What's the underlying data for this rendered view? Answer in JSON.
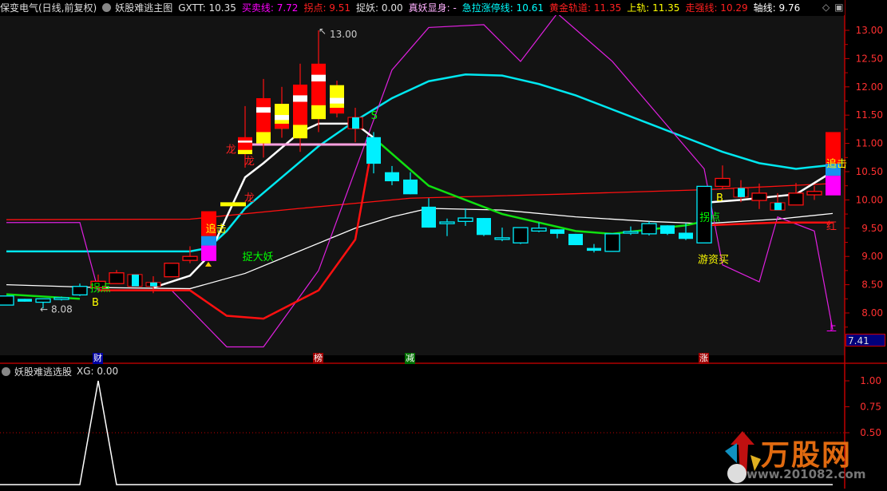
{
  "header": {
    "stock": "保变电气(日线,前复权)",
    "indicator": "妖股难逃主图",
    "items": [
      {
        "label": "GXTT: 10.35",
        "color": "#e0e0e0"
      },
      {
        "label": "买卖线: 7.72",
        "color": "#ff00ff"
      },
      {
        "label": "拐点: 9.51",
        "color": "#ff2020"
      },
      {
        "label": "捉妖: 0.00",
        "color": "#e0e0e0"
      },
      {
        "label": "真妖显身: -",
        "color": "#ffb0ff"
      },
      {
        "label": "急拉涨停线: 10.61",
        "color": "#00ffff"
      },
      {
        "label": "黄金轨道: 11.35",
        "color": "#ff2020"
      },
      {
        "label": "上轨: 11.35",
        "color": "#ffff00"
      },
      {
        "label": "走强线: 10.29",
        "color": "#ff2020"
      },
      {
        "label": "轴线: 9.76",
        "color": "#ffffff"
      }
    ]
  },
  "sub_header": {
    "indicator": "妖股难逃选股",
    "value": "XG: 0.00"
  },
  "price_axis": {
    "ticks": [
      "13.00",
      "12.50",
      "12.00",
      "11.50",
      "11.00",
      "10.50",
      "10.00",
      "9.50",
      "9.00",
      "8.50",
      "8.00"
    ],
    "current": "7.41"
  },
  "sub_axis": {
    "ticks": [
      "1.00",
      "0.75",
      "0.50"
    ]
  },
  "annotations": {
    "high_label": "13.00",
    "low_label": "8.08",
    "labels": [
      {
        "text": "龙",
        "color": "#ff2020",
        "i": 12.3,
        "p": 10.9
      },
      {
        "text": "龙",
        "color": "#ff2020",
        "i": 13.3,
        "p": 10.7
      },
      {
        "text": "龙",
        "color": "#ff2020",
        "i": 13.3,
        "p": 10.05
      },
      {
        "text": "追击",
        "color": "#ffff00",
        "i": 11.2,
        "p": 9.5
      },
      {
        "text": "捉大妖",
        "color": "#00ff00",
        "i": 13.2,
        "p": 9.0
      },
      {
        "text": "拐点",
        "color": "#00ff00",
        "i": 4.9,
        "p": 8.45
      },
      {
        "text": "B",
        "color": "#ffff00",
        "i": 5.0,
        "p": 8.2
      },
      {
        "text": "S",
        "color": "#00ff00",
        "i": 20.2,
        "p": 11.5
      },
      {
        "text": "拐点",
        "color": "#00ff00",
        "i": 38.1,
        "p": 9.7
      },
      {
        "text": "B",
        "color": "#ffff00",
        "i": 39.0,
        "p": 10.05
      },
      {
        "text": "游资买",
        "color": "#ffff00",
        "i": 38.0,
        "p": 8.95
      },
      {
        "text": "追击",
        "color": "#ffff00",
        "i": 45.0,
        "p": 10.65
      },
      {
        "text": "红",
        "color": "#ff2020",
        "i": 45.0,
        "p": 9.55
      },
      {
        "text": "上",
        "color": "#ff00ff",
        "i": 45.0,
        "p": 7.75
      }
    ],
    "tags": [
      {
        "text": "财",
        "bg": "#0000a0",
        "i": 5
      },
      {
        "text": "榜",
        "bg": "#a00000",
        "i": 17
      },
      {
        "text": "减",
        "bg": "#007000",
        "i": 22
      },
      {
        "text": "涨",
        "bg": "#a00000",
        "i": 38
      }
    ]
  },
  "candles": [
    {
      "o": 8.14,
      "h": 8.3,
      "l": 8.14,
      "c": 8.3,
      "style": "hollow-cyan"
    },
    {
      "o": 8.25,
      "h": 8.25,
      "l": 8.2,
      "c": 8.2,
      "style": "filled-cyan"
    },
    {
      "o": 8.19,
      "h": 8.25,
      "l": 8.08,
      "c": 8.25,
      "style": "hollow-cyan"
    },
    {
      "o": 8.24,
      "h": 8.29,
      "l": 8.22,
      "c": 8.27,
      "style": "hollow-cyan"
    },
    {
      "o": 8.32,
      "h": 8.52,
      "l": 8.3,
      "c": 8.47,
      "style": "hollow-cyan"
    },
    {
      "o": 8.45,
      "h": 8.68,
      "l": 8.45,
      "c": 8.56,
      "style": "hollow-red"
    },
    {
      "o": 8.52,
      "h": 8.76,
      "l": 8.52,
      "c": 8.71,
      "style": "hollow-red"
    },
    {
      "o": 8.68,
      "h": 8.68,
      "l": 8.47,
      "c": 8.47,
      "style": "red-cyan"
    },
    {
      "o": 8.54,
      "h": 8.65,
      "l": 8.35,
      "c": 8.47,
      "style": "red-cyan"
    },
    {
      "o": 8.64,
      "h": 8.88,
      "l": 8.64,
      "c": 8.88,
      "style": "hollow-red"
    },
    {
      "o": 8.93,
      "h": 9.18,
      "l": 8.88,
      "c": 9.0,
      "style": "hollow-red"
    },
    {
      "o": 8.92,
      "h": 9.8,
      "l": 8.92,
      "c": 9.8,
      "style": "signal"
    },
    {
      "o": 9.93,
      "h": 9.93,
      "l": 9.93,
      "c": 9.93,
      "style": "limit-up"
    },
    {
      "o": 10.81,
      "h": 11.66,
      "l": 10.57,
      "c": 11.11,
      "style": "dragon-red"
    },
    {
      "o": 11.0,
      "h": 12.14,
      "l": 10.75,
      "c": 11.8,
      "style": "dragon-red"
    },
    {
      "o": 11.26,
      "h": 12.0,
      "l": 11.1,
      "c": 11.7,
      "style": "dragon-yellow"
    },
    {
      "o": 11.09,
      "h": 12.41,
      "l": 10.85,
      "c": 12.04,
      "style": "dragon-red"
    },
    {
      "o": 11.43,
      "h": 13.0,
      "l": 11.2,
      "c": 12.41,
      "style": "dragon-red"
    },
    {
      "o": 11.53,
      "h": 12.11,
      "l": 11.46,
      "c": 12.03,
      "style": "dragon-yellow"
    },
    {
      "o": 11.46,
      "h": 11.63,
      "l": 11.02,
      "c": 11.26,
      "style": "red-cyan"
    },
    {
      "o": 11.11,
      "h": 11.2,
      "l": 10.47,
      "c": 10.64,
      "style": "filled-cyan"
    },
    {
      "o": 10.49,
      "h": 10.6,
      "l": 10.26,
      "c": 10.33,
      "style": "filled-cyan"
    },
    {
      "o": 10.36,
      "h": 10.49,
      "l": 10.1,
      "c": 10.1,
      "style": "filled-cyan"
    },
    {
      "o": 9.88,
      "h": 10.03,
      "l": 9.51,
      "c": 9.51,
      "style": "filled-cyan"
    },
    {
      "o": 9.58,
      "h": 9.67,
      "l": 9.36,
      "c": 9.61,
      "style": "hollow-cyan"
    },
    {
      "o": 9.62,
      "h": 9.85,
      "l": 9.54,
      "c": 9.68,
      "style": "hollow-cyan"
    },
    {
      "o": 9.68,
      "h": 9.68,
      "l": 9.36,
      "c": 9.38,
      "style": "filled-cyan"
    },
    {
      "o": 9.31,
      "h": 9.51,
      "l": 9.27,
      "c": 9.33,
      "style": "hollow-cyan"
    },
    {
      "o": 9.24,
      "h": 9.51,
      "l": 9.22,
      "c": 9.51,
      "style": "hollow-cyan"
    },
    {
      "o": 9.45,
      "h": 9.6,
      "l": 9.43,
      "c": 9.5,
      "style": "hollow-cyan"
    },
    {
      "o": 9.48,
      "h": 9.48,
      "l": 9.32,
      "c": 9.4,
      "style": "filled-cyan"
    },
    {
      "o": 9.4,
      "h": 9.4,
      "l": 9.2,
      "c": 9.2,
      "style": "filled-cyan"
    },
    {
      "o": 9.1,
      "h": 9.22,
      "l": 9.07,
      "c": 9.15,
      "style": "filled-cyan"
    },
    {
      "o": 9.09,
      "h": 9.4,
      "l": 9.09,
      "c": 9.4,
      "style": "hollow-cyan"
    },
    {
      "o": 9.43,
      "h": 9.53,
      "l": 9.38,
      "c": 9.44,
      "style": "hollow-cyan"
    },
    {
      "o": 9.4,
      "h": 9.62,
      "l": 9.37,
      "c": 9.58,
      "style": "hollow-cyan"
    },
    {
      "o": 9.55,
      "h": 9.55,
      "l": 9.38,
      "c": 9.4,
      "style": "filled-cyan"
    },
    {
      "o": 9.42,
      "h": 9.59,
      "l": 9.29,
      "c": 9.31,
      "style": "filled-cyan"
    },
    {
      "o": 9.24,
      "h": 10.24,
      "l": 9.24,
      "c": 10.24,
      "style": "hollow-cyan"
    },
    {
      "o": 10.24,
      "h": 10.61,
      "l": 10.19,
      "c": 10.38,
      "style": "hollow-red"
    },
    {
      "o": 10.21,
      "h": 10.35,
      "l": 9.96,
      "c": 10.05,
      "style": "red-cyan"
    },
    {
      "o": 9.99,
      "h": 10.29,
      "l": 9.84,
      "c": 10.12,
      "style": "hollow-red"
    },
    {
      "o": 9.95,
      "h": 10.12,
      "l": 9.82,
      "c": 9.82,
      "style": "red-cyan"
    },
    {
      "o": 9.91,
      "h": 10.3,
      "l": 9.91,
      "c": 10.12,
      "style": "hollow-red"
    },
    {
      "o": 10.09,
      "h": 10.25,
      "l": 10.0,
      "c": 10.15,
      "style": "hollow-red"
    },
    {
      "o": 10.08,
      "h": 11.2,
      "l": 10.08,
      "c": 11.2,
      "style": "signal"
    }
  ],
  "lines": [
    {
      "name": "cyan-line",
      "color": "#00e8f0",
      "width": 2.5,
      "points": [
        [
          0,
          9.09
        ],
        [
          10,
          9.09
        ],
        [
          11,
          9.15
        ],
        [
          12,
          9.45
        ],
        [
          13,
          9.85
        ],
        [
          15,
          10.4
        ],
        [
          17,
          10.95
        ],
        [
          19,
          11.4
        ],
        [
          21,
          11.8
        ],
        [
          23,
          12.1
        ],
        [
          25,
          12.22
        ],
        [
          27,
          12.2
        ],
        [
          29,
          12.05
        ],
        [
          31,
          11.85
        ],
        [
          33,
          11.6
        ],
        [
          35,
          11.35
        ],
        [
          37,
          11.1
        ],
        [
          39,
          10.85
        ],
        [
          41,
          10.65
        ],
        [
          43,
          10.55
        ],
        [
          45,
          10.62
        ]
      ]
    },
    {
      "name": "white-thin-line",
      "color": "#ffffff",
      "width": 1.3,
      "points": [
        [
          0,
          8.5
        ],
        [
          5,
          8.45
        ],
        [
          10,
          8.43
        ],
        [
          13,
          8.7
        ],
        [
          16,
          9.1
        ],
        [
          19,
          9.5
        ],
        [
          21,
          9.7
        ],
        [
          23,
          9.85
        ],
        [
          27,
          9.82
        ],
        [
          31,
          9.7
        ],
        [
          35,
          9.62
        ],
        [
          38,
          9.58
        ],
        [
          42,
          9.66
        ],
        [
          45,
          9.76
        ]
      ]
    },
    {
      "name": "red-thin-line",
      "color": "#ff1010",
      "width": 1.3,
      "points": [
        [
          0,
          9.65
        ],
        [
          10,
          9.66
        ],
        [
          16,
          9.85
        ],
        [
          22,
          10.03
        ],
        [
          30,
          10.1
        ],
        [
          38,
          10.18
        ],
        [
          45,
          10.29
        ]
      ]
    },
    {
      "name": "magenta-line",
      "color": "#e020e0",
      "width": 1.2,
      "points": [
        [
          0,
          9.6
        ],
        [
          4,
          9.6
        ],
        [
          5,
          8.4
        ],
        [
          9,
          8.4
        ],
        [
          12,
          7.4
        ],
        [
          14,
          7.4
        ],
        [
          17,
          8.75
        ],
        [
          21,
          12.3
        ],
        [
          23,
          13.05
        ],
        [
          26,
          13.1
        ],
        [
          28,
          12.45
        ],
        [
          30,
          13.3
        ],
        [
          33,
          12.45
        ],
        [
          38,
          10.55
        ],
        [
          39,
          8.85
        ],
        [
          41,
          8.55
        ],
        [
          42,
          9.7
        ],
        [
          44,
          9.45
        ],
        [
          45,
          7.7
        ]
      ]
    },
    {
      "name": "red-thick-line",
      "color": "#ff1010",
      "width": 2.5,
      "points": [
        [
          5,
          8.4
        ],
        [
          10,
          8.4
        ],
        [
          12,
          7.95
        ],
        [
          14,
          7.9
        ],
        [
          17,
          8.4
        ],
        [
          19,
          9.3
        ],
        [
          20,
          11.1
        ],
        null,
        [
          38,
          9.55
        ],
        [
          42,
          9.6
        ],
        [
          45,
          9.6
        ]
      ]
    },
    {
      "name": "white-thick-line",
      "color": "#ffffff",
      "width": 2.5,
      "points": [
        [
          8,
          8.45
        ],
        [
          10,
          8.66
        ],
        [
          11,
          9.0
        ],
        [
          13,
          10.4
        ],
        [
          14,
          10.65
        ],
        [
          16,
          11.2
        ],
        [
          17,
          11.35
        ],
        [
          19,
          11.35
        ],
        [
          20,
          11.1
        ],
        null,
        [
          38,
          9.95
        ],
        [
          40,
          10.0
        ],
        [
          43,
          10.1
        ],
        [
          45,
          10.5
        ]
      ]
    },
    {
      "name": "green-line",
      "color": "#10e010",
      "width": 2.5,
      "points": [
        [
          0,
          8.33
        ],
        [
          4,
          8.25
        ],
        null,
        [
          20,
          11.1
        ],
        [
          23,
          10.25
        ],
        [
          27,
          9.75
        ],
        [
          31,
          9.45
        ],
        [
          33,
          9.4
        ],
        [
          37,
          9.55
        ],
        [
          38,
          9.62
        ]
      ]
    },
    {
      "name": "pink-line",
      "color": "#ffa0e0",
      "width": 3,
      "points": [
        [
          13,
          10.98
        ],
        [
          20,
          10.98
        ]
      ]
    }
  ],
  "xg_series": [
    0,
    0,
    0,
    0,
    0,
    1,
    0,
    0,
    0,
    0,
    0,
    0,
    0,
    0,
    0,
    0,
    0,
    0,
    0,
    0,
    0,
    0,
    0,
    0,
    0,
    0,
    0,
    0,
    0,
    0,
    0,
    0,
    0,
    0,
    0,
    0,
    0,
    0,
    0,
    0,
    0,
    0,
    0,
    0,
    0,
    0
  ],
  "logo": {
    "name": "万股网",
    "url": "www.201082.com"
  }
}
